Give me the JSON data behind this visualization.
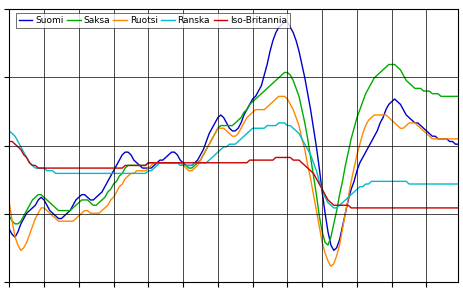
{
  "legend_labels": [
    "Suomi",
    "Saksa",
    "Ruotsi",
    "Ranska",
    "Iso-Britannia"
  ],
  "colors": {
    "Suomi": "#0000CC",
    "Saksa": "#00AA00",
    "Ruotsi": "#FF8800",
    "Ranska": "#00BBCC",
    "Iso-Britannia": "#CC0000"
  },
  "n_gridcols": 11,
  "n_gridrows": 4,
  "suomi": [
    -2.5,
    -2.7,
    -2.8,
    -2.6,
    -2.3,
    -2.1,
    -1.9,
    -1.8,
    -1.7,
    -1.6,
    -1.4,
    -1.3,
    -1.4,
    -1.6,
    -1.8,
    -1.9,
    -2.0,
    -2.1,
    -2.1,
    -2.0,
    -1.9,
    -1.8,
    -1.6,
    -1.4,
    -1.3,
    -1.2,
    -1.2,
    -1.3,
    -1.4,
    -1.4,
    -1.3,
    -1.2,
    -1.1,
    -0.9,
    -0.7,
    -0.5,
    -0.3,
    -0.1,
    0.1,
    0.3,
    0.4,
    0.4,
    0.3,
    0.1,
    0.0,
    -0.1,
    -0.2,
    -0.2,
    -0.2,
    -0.2,
    -0.1,
    0.0,
    0.1,
    0.1,
    0.2,
    0.3,
    0.4,
    0.4,
    0.3,
    0.1,
    -0.0,
    -0.1,
    -0.1,
    -0.1,
    0.0,
    0.1,
    0.3,
    0.5,
    0.8,
    1.1,
    1.3,
    1.5,
    1.7,
    1.8,
    1.7,
    1.5,
    1.3,
    1.2,
    1.2,
    1.3,
    1.5,
    1.8,
    2.0,
    2.2,
    2.4,
    2.5,
    2.7,
    2.9,
    3.3,
    3.7,
    4.2,
    4.6,
    4.9,
    5.1,
    5.2,
    5.3,
    5.3,
    5.1,
    4.9,
    4.6,
    4.2,
    3.7,
    3.2,
    2.6,
    2.0,
    1.3,
    0.6,
    -0.2,
    -1.1,
    -1.9,
    -2.6,
    -3.1,
    -3.3,
    -3.2,
    -2.9,
    -2.4,
    -1.9,
    -1.4,
    -1.0,
    -0.7,
    -0.3,
    -0.0,
    0.2,
    0.4,
    0.6,
    0.8,
    1.0,
    1.2,
    1.5,
    1.7,
    2.0,
    2.2,
    2.3,
    2.4,
    2.3,
    2.2,
    2.0,
    1.8,
    1.7,
    1.6,
    1.5,
    1.5,
    1.4,
    1.3,
    1.2,
    1.1,
    1.0,
    1.0,
    0.9,
    0.9,
    0.9,
    0.9,
    0.8,
    0.8,
    0.7,
    0.7
  ],
  "saksa": [
    -2.0,
    -2.2,
    -2.3,
    -2.3,
    -2.2,
    -2.0,
    -1.8,
    -1.6,
    -1.4,
    -1.3,
    -1.2,
    -1.2,
    -1.3,
    -1.4,
    -1.5,
    -1.6,
    -1.7,
    -1.8,
    -1.8,
    -1.8,
    -1.8,
    -1.8,
    -1.7,
    -1.6,
    -1.5,
    -1.4,
    -1.4,
    -1.4,
    -1.5,
    -1.6,
    -1.6,
    -1.5,
    -1.4,
    -1.3,
    -1.1,
    -1.0,
    -0.8,
    -0.7,
    -0.5,
    -0.4,
    -0.2,
    -0.1,
    -0.1,
    -0.1,
    -0.1,
    -0.1,
    -0.1,
    -0.1,
    -0.0,
    -0.0,
    -0.0,
    -0.0,
    -0.0,
    -0.0,
    -0.0,
    -0.0,
    -0.0,
    -0.0,
    -0.0,
    -0.0,
    -0.1,
    -0.1,
    -0.2,
    -0.2,
    -0.1,
    -0.0,
    0.1,
    0.3,
    0.5,
    0.7,
    0.9,
    1.1,
    1.3,
    1.4,
    1.4,
    1.4,
    1.4,
    1.4,
    1.5,
    1.6,
    1.7,
    1.9,
    2.0,
    2.2,
    2.3,
    2.4,
    2.5,
    2.6,
    2.7,
    2.8,
    2.9,
    3.0,
    3.1,
    3.2,
    3.3,
    3.4,
    3.4,
    3.3,
    3.1,
    2.8,
    2.5,
    2.0,
    1.5,
    0.9,
    0.2,
    -0.5,
    -1.2,
    -2.0,
    -2.6,
    -3.0,
    -3.1,
    -2.8,
    -2.3,
    -1.8,
    -1.2,
    -0.7,
    -0.1,
    0.4,
    0.9,
    1.3,
    1.7,
    2.0,
    2.3,
    2.6,
    2.8,
    3.0,
    3.2,
    3.3,
    3.4,
    3.5,
    3.6,
    3.7,
    3.7,
    3.7,
    3.6,
    3.5,
    3.3,
    3.1,
    3.0,
    2.9,
    2.8,
    2.8,
    2.8,
    2.7,
    2.7,
    2.7,
    2.6,
    2.6,
    2.6,
    2.5,
    2.5,
    2.5,
    2.5,
    2.5,
    2.5,
    2.5
  ],
  "ruotsi": [
    -1.5,
    -2.2,
    -2.8,
    -3.1,
    -3.3,
    -3.2,
    -3.0,
    -2.7,
    -2.4,
    -2.1,
    -1.9,
    -1.7,
    -1.7,
    -1.8,
    -1.9,
    -2.0,
    -2.1,
    -2.2,
    -2.2,
    -2.2,
    -2.2,
    -2.2,
    -2.2,
    -2.1,
    -2.0,
    -1.9,
    -1.8,
    -1.8,
    -1.9,
    -1.9,
    -1.9,
    -1.9,
    -1.8,
    -1.7,
    -1.6,
    -1.4,
    -1.3,
    -1.1,
    -0.9,
    -0.8,
    -0.6,
    -0.5,
    -0.4,
    -0.4,
    -0.3,
    -0.3,
    -0.3,
    -0.3,
    -0.2,
    -0.1,
    -0.0,
    -0.0,
    -0.0,
    -0.0,
    -0.0,
    -0.0,
    -0.0,
    -0.0,
    -0.0,
    -0.0,
    -0.1,
    -0.2,
    -0.3,
    -0.3,
    -0.2,
    -0.1,
    0.1,
    0.3,
    0.5,
    0.7,
    0.9,
    1.1,
    1.3,
    1.3,
    1.3,
    1.2,
    1.1,
    1.0,
    1.0,
    1.1,
    1.3,
    1.5,
    1.7,
    1.8,
    1.9,
    2.0,
    2.0,
    2.0,
    2.0,
    2.1,
    2.2,
    2.3,
    2.4,
    2.5,
    2.5,
    2.5,
    2.4,
    2.2,
    2.0,
    1.7,
    1.4,
    0.9,
    0.5,
    -0.1,
    -0.6,
    -1.2,
    -1.8,
    -2.4,
    -3.0,
    -3.4,
    -3.7,
    -3.9,
    -3.8,
    -3.5,
    -3.1,
    -2.5,
    -1.9,
    -1.3,
    -0.7,
    -0.2,
    0.3,
    0.7,
    1.1,
    1.4,
    1.6,
    1.7,
    1.8,
    1.8,
    1.8,
    1.8,
    1.8,
    1.7,
    1.6,
    1.5,
    1.4,
    1.3,
    1.3,
    1.4,
    1.5,
    1.5,
    1.5,
    1.4,
    1.3,
    1.2,
    1.1,
    1.0,
    0.9,
    0.9,
    0.9,
    0.9,
    0.9,
    0.9,
    0.9,
    0.9,
    0.9,
    0.9
  ],
  "ranska": [
    1.2,
    1.1,
    1.0,
    0.8,
    0.6,
    0.4,
    0.2,
    0.0,
    -0.1,
    -0.2,
    -0.2,
    -0.2,
    -0.2,
    -0.3,
    -0.3,
    -0.3,
    -0.4,
    -0.4,
    -0.4,
    -0.4,
    -0.4,
    -0.4,
    -0.4,
    -0.4,
    -0.4,
    -0.4,
    -0.4,
    -0.4,
    -0.4,
    -0.4,
    -0.4,
    -0.4,
    -0.4,
    -0.4,
    -0.4,
    -0.4,
    -0.4,
    -0.4,
    -0.4,
    -0.4,
    -0.4,
    -0.4,
    -0.4,
    -0.4,
    -0.4,
    -0.4,
    -0.4,
    -0.4,
    -0.3,
    -0.3,
    -0.2,
    -0.1,
    -0.0,
    -0.0,
    -0.0,
    -0.0,
    -0.0,
    -0.0,
    -0.0,
    -0.1,
    -0.1,
    -0.1,
    -0.1,
    -0.1,
    -0.0,
    -0.0,
    -0.0,
    -0.0,
    0.0,
    0.1,
    0.2,
    0.3,
    0.4,
    0.5,
    0.6,
    0.6,
    0.7,
    0.7,
    0.7,
    0.8,
    0.9,
    1.0,
    1.1,
    1.2,
    1.3,
    1.3,
    1.3,
    1.3,
    1.3,
    1.4,
    1.4,
    1.4,
    1.4,
    1.5,
    1.5,
    1.5,
    1.4,
    1.4,
    1.3,
    1.2,
    1.1,
    0.9,
    0.7,
    0.5,
    0.3,
    0.0,
    -0.3,
    -0.7,
    -1.0,
    -1.3,
    -1.5,
    -1.6,
    -1.7,
    -1.7,
    -1.6,
    -1.5,
    -1.4,
    -1.3,
    -1.2,
    -1.1,
    -1.0,
    -0.9,
    -0.9,
    -0.8,
    -0.8,
    -0.7,
    -0.7,
    -0.7,
    -0.7,
    -0.7,
    -0.7,
    -0.7,
    -0.7,
    -0.7,
    -0.7,
    -0.7,
    -0.7,
    -0.7,
    -0.8,
    -0.8,
    -0.8,
    -0.8,
    -0.8,
    -0.8,
    -0.8,
    -0.8,
    -0.8,
    -0.8,
    -0.8,
    -0.8,
    -0.8,
    -0.8,
    -0.8,
    -0.8,
    -0.8,
    -0.8
  ],
  "iso_britannia": [
    0.8,
    0.8,
    0.7,
    0.6,
    0.5,
    0.3,
    0.2,
    0.0,
    -0.1,
    -0.1,
    -0.2,
    -0.2,
    -0.2,
    -0.2,
    -0.2,
    -0.2,
    -0.2,
    -0.2,
    -0.2,
    -0.2,
    -0.2,
    -0.2,
    -0.2,
    -0.2,
    -0.2,
    -0.2,
    -0.2,
    -0.2,
    -0.2,
    -0.2,
    -0.2,
    -0.2,
    -0.2,
    -0.2,
    -0.2,
    -0.2,
    -0.2,
    -0.2,
    -0.2,
    -0.2,
    -0.1,
    -0.1,
    -0.1,
    -0.1,
    -0.1,
    -0.1,
    -0.1,
    -0.1,
    -0.0,
    -0.0,
    -0.0,
    -0.0,
    -0.0,
    -0.0,
    -0.0,
    -0.0,
    -0.0,
    -0.0,
    -0.0,
    -0.0,
    -0.0,
    -0.0,
    -0.0,
    -0.0,
    -0.0,
    -0.0,
    -0.0,
    -0.0,
    -0.0,
    -0.0,
    0.0,
    0.0,
    0.0,
    0.0,
    -0.0,
    -0.0,
    -0.0,
    -0.0,
    -0.0,
    -0.0,
    -0.0,
    -0.0,
    0.0,
    0.1,
    0.1,
    0.1,
    0.1,
    0.1,
    0.1,
    0.1,
    0.1,
    0.1,
    0.2,
    0.2,
    0.2,
    0.2,
    0.2,
    0.2,
    0.1,
    0.1,
    0.1,
    -0.0,
    -0.1,
    -0.2,
    -0.3,
    -0.4,
    -0.6,
    -0.8,
    -1.0,
    -1.2,
    -1.4,
    -1.5,
    -1.6,
    -1.6,
    -1.6,
    -1.6,
    -1.6,
    -1.6,
    -1.7,
    -1.7,
    -1.7,
    -1.7,
    -1.7,
    -1.7,
    -1.7,
    -1.7,
    -1.7,
    -1.7,
    -1.7,
    -1.7,
    -1.7,
    -1.7,
    -1.7,
    -1.7,
    -1.7,
    -1.7,
    -1.7,
    -1.7,
    -1.7,
    -1.7,
    -1.7,
    -1.7,
    -1.7,
    -1.7,
    -1.7,
    -1.7,
    -1.7,
    -1.7,
    -1.7,
    -1.7,
    -1.7,
    -1.7,
    -1.7,
    -1.7,
    -1.7,
    -1.7
  ]
}
